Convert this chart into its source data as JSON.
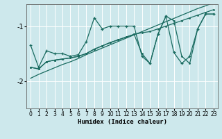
{
  "xlabel": "Humidex (Indice chaleur)",
  "xlim": [
    -0.5,
    23.5
  ],
  "ylim": [
    -2.5,
    -0.6
  ],
  "yticks": [
    -2,
    -1
  ],
  "xticks": [
    0,
    1,
    2,
    3,
    4,
    5,
    6,
    7,
    8,
    9,
    10,
    11,
    12,
    13,
    14,
    15,
    16,
    17,
    18,
    19,
    20,
    21,
    22,
    23
  ],
  "bg_color": "#cde8ec",
  "grid_color": "#ffffff",
  "line_color": "#1a6b60",
  "series_zigzag_x": [
    0,
    1,
    2,
    3,
    4,
    5,
    6,
    7,
    8,
    9,
    10,
    11,
    12,
    13,
    14,
    15,
    16,
    17,
    18,
    19,
    20,
    21,
    22,
    23
  ],
  "series_zigzag_y": [
    -1.35,
    -1.75,
    -1.45,
    -1.5,
    -1.5,
    -1.55,
    -1.52,
    -1.28,
    -0.85,
    -1.05,
    -1.0,
    -1.0,
    -1.0,
    -1.0,
    -1.55,
    -1.68,
    -1.15,
    -0.82,
    -1.48,
    -1.68,
    -1.55,
    -1.05,
    -0.78,
    -0.78
  ],
  "series_straight_x": [
    0,
    1,
    2,
    3,
    4,
    5,
    6,
    7,
    8,
    9,
    10,
    11,
    12,
    13,
    14,
    15,
    16,
    17,
    18,
    19,
    20,
    21,
    22,
    23
  ],
  "series_straight_y": [
    -1.95,
    -1.88,
    -1.82,
    -1.76,
    -1.7,
    -1.65,
    -1.59,
    -1.52,
    -1.46,
    -1.4,
    -1.34,
    -1.28,
    -1.22,
    -1.16,
    -1.1,
    -1.04,
    -0.98,
    -0.92,
    -0.86,
    -0.8,
    -0.74,
    -0.68,
    -0.63,
    -0.57
  ],
  "series_mid_x": [
    0,
    1,
    2,
    3,
    4,
    5,
    6,
    7,
    8,
    9,
    10,
    11,
    12,
    13,
    14,
    15,
    16,
    17,
    18,
    19,
    20,
    21,
    22,
    23
  ],
  "series_mid_y": [
    -1.75,
    -1.78,
    -1.65,
    -1.62,
    -1.6,
    -1.58,
    -1.55,
    -1.5,
    -1.42,
    -1.36,
    -1.3,
    -1.25,
    -1.2,
    -1.15,
    -1.12,
    -1.1,
    -1.05,
    -1.0,
    -0.95,
    -0.9,
    -0.85,
    -0.8,
    -0.75,
    -0.7
  ],
  "series_var_x": [
    0,
    1,
    2,
    3,
    4,
    5,
    6,
    7,
    8,
    9,
    10,
    11,
    12,
    13,
    14,
    15,
    16,
    17,
    18,
    19,
    20,
    21,
    22,
    23
  ],
  "series_var_y": [
    -1.75,
    -1.78,
    -1.65,
    -1.62,
    -1.6,
    -1.58,
    -1.55,
    -1.5,
    -1.42,
    -1.36,
    -1.3,
    -1.25,
    -1.2,
    -1.15,
    -1.5,
    -1.68,
    -1.15,
    -0.82,
    -0.9,
    -1.55,
    -1.68,
    -1.05,
    -0.78,
    -0.78
  ]
}
